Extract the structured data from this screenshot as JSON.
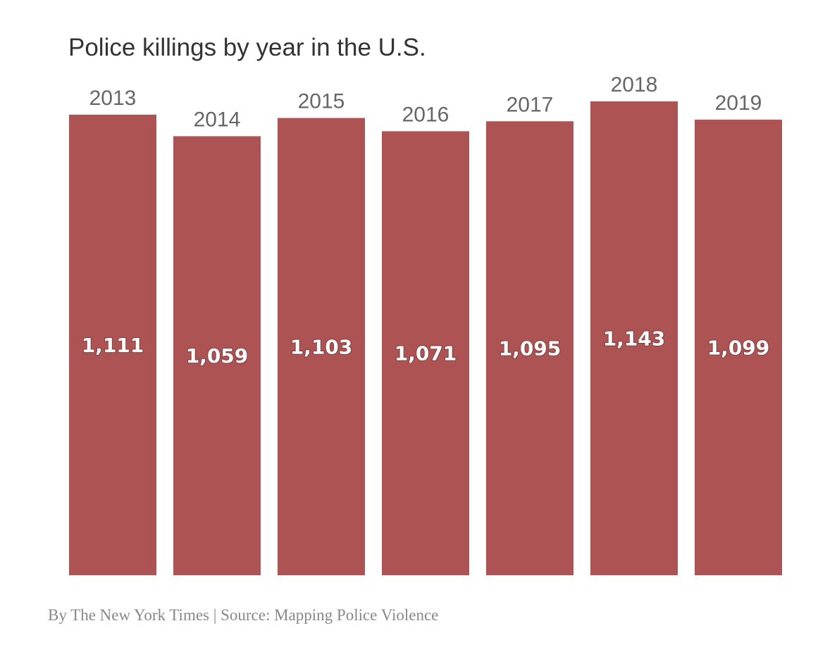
{
  "chart_data": {
    "type": "bar",
    "title": "Police killings by year in the U.S.",
    "categories": [
      "2013",
      "2014",
      "2015",
      "2016",
      "2017",
      "2018",
      "2019"
    ],
    "values": [
      1111,
      1059,
      1103,
      1071,
      1095,
      1143,
      1099
    ],
    "value_labels": [
      "1,111",
      "1,059",
      "1,103",
      "1,071",
      "1,095",
      "1,143",
      "1,099"
    ],
    "xlabel": "",
    "ylabel": "",
    "ylim": [
      0,
      1143
    ],
    "grid": false,
    "bar_color": "#ad5353",
    "credit": "By The New York Times | Source: Mapping Police Violence"
  }
}
